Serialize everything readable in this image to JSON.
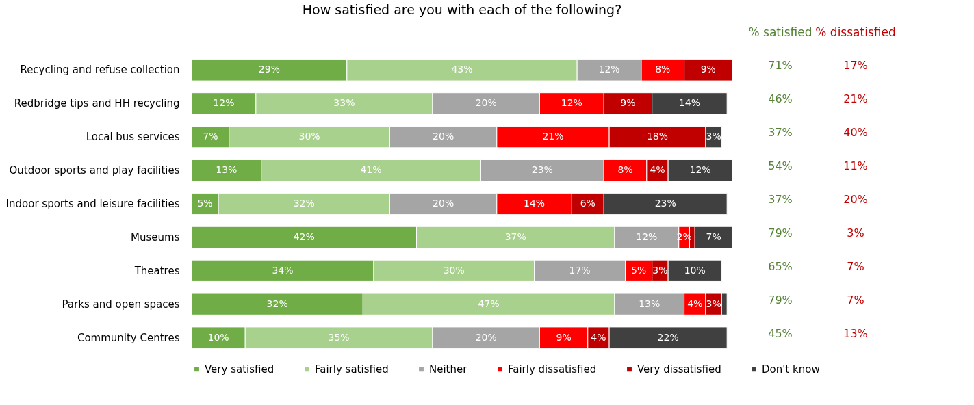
{
  "chart_data": {
    "type": "bar",
    "orientation": "horizontal",
    "stacked": true,
    "legend": "bottom",
    "grid": false,
    "title": "How satisfied are you with each of the following?",
    "categories": [
      "Recycling and refuse collection",
      "Redbridge tips and HH recycling",
      "Local bus services",
      "Outdoor sports and play facilities",
      "Indoor sports and leisure facilities",
      "Museums",
      "Theatres",
      "Parks and open spaces",
      "Community Centres"
    ],
    "series": [
      {
        "name": "Very satisfied",
        "color": "#70ad47",
        "values": [
          29,
          12,
          7,
          13,
          5,
          42,
          34,
          32,
          10
        ],
        "value_labels": [
          "29%",
          "12%",
          "7%",
          "13%",
          "5%",
          "42%",
          "34%",
          "32%",
          "10%"
        ]
      },
      {
        "name": "Fairly satisfied",
        "color": "#a9d18e",
        "values": [
          43,
          33,
          30,
          41,
          32,
          37,
          30,
          47,
          35
        ],
        "value_labels": [
          "43%",
          "33%",
          "30%",
          "41%",
          "32%",
          "37%",
          "30%",
          "47%",
          "35%"
        ]
      },
      {
        "name": "Neither",
        "color": "#a5a5a5",
        "values": [
          12,
          20,
          20,
          23,
          20,
          12,
          17,
          13,
          20
        ],
        "value_labels": [
          "12%",
          "20%",
          "20%",
          "23%",
          "20%",
          "12%",
          "17%",
          "13%",
          "20%"
        ]
      },
      {
        "name": "Fairly dissatisfied",
        "color": "#ff0000",
        "values": [
          8,
          12,
          21,
          8,
          14,
          2,
          5,
          4,
          9
        ],
        "value_labels": [
          "8%",
          "12%",
          "21%",
          "8%",
          "14%",
          "2%",
          "5%",
          "4%",
          "9%"
        ]
      },
      {
        "name": "Very dissatisfied",
        "color": "#c00000",
        "values": [
          9,
          9,
          18,
          4,
          6,
          1,
          3,
          3,
          4
        ],
        "value_labels": [
          "9%",
          "9%",
          "18%",
          "4%",
          "6%",
          null,
          "3%",
          "3%",
          "4%"
        ]
      },
      {
        "name": "Don't know",
        "color": "#404040",
        "values": [
          0,
          14,
          3,
          12,
          23,
          7,
          10,
          1,
          22
        ],
        "value_labels": [
          null,
          "14%",
          "3%",
          "12%",
          "23%",
          "7%",
          "10%",
          null,
          "22%"
        ]
      }
    ],
    "annotations": [
      "% satisfied",
      "71%",
      "46%",
      "37%",
      "54%",
      "37%",
      "79%",
      "65%",
      "79%",
      "45%",
      "% dissatisfied",
      "17%",
      "21%",
      "40%",
      "11%",
      "20%",
      "3%",
      "7%",
      "7%",
      "13%"
    ]
  }
}
